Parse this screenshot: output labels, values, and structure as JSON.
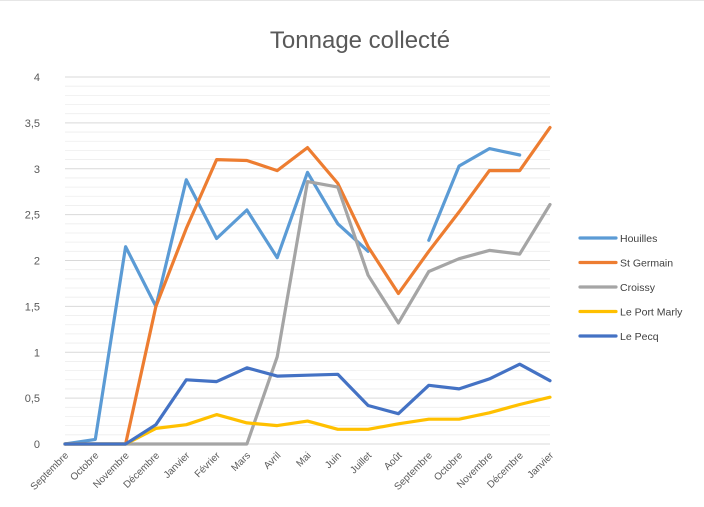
{
  "chart_data": {
    "type": "line",
    "title": "Tonnage collecté",
    "xlabel": "",
    "ylabel": "",
    "ylim": [
      0,
      4
    ],
    "y_ticks": [
      "0",
      "0,5",
      "1",
      "1,5",
      "2",
      "2,5",
      "3",
      "3,5",
      "4"
    ],
    "categories": [
      "Septembre",
      "Octobre",
      "Novembre",
      "Décembre",
      "Janvier",
      "Février",
      "Mars",
      "Avril",
      "Mai",
      "Juin",
      "Juillet",
      "Août",
      "Septembre",
      "Octobre",
      "Novembre",
      "Décembre",
      "Janvier"
    ],
    "grid": true,
    "legend_position": "right",
    "series": [
      {
        "name": "Houilles",
        "color": "#5b9bd5",
        "values": [
          0,
          0.05,
          2.15,
          1.5,
          2.88,
          2.24,
          2.55,
          2.03,
          2.96,
          2.4,
          2.1,
          null,
          2.22,
          3.03,
          3.22,
          3.15,
          null
        ]
      },
      {
        "name": "St Germain",
        "color": "#ed7d31",
        "values": [
          0,
          0,
          0,
          1.5,
          2.35,
          3.1,
          3.09,
          2.98,
          3.23,
          2.84,
          2.15,
          1.64,
          2.1,
          2.53,
          2.98,
          2.98,
          3.45
        ]
      },
      {
        "name": "Croissy",
        "color": "#a5a5a5",
        "values": [
          0,
          0,
          0,
          0,
          0,
          0,
          0,
          0.95,
          2.86,
          2.8,
          1.84,
          1.32,
          1.88,
          2.02,
          2.11,
          2.07,
          2.61
        ]
      },
      {
        "name": "Le Port Marly",
        "color": "#ffc000",
        "values": [
          0,
          0,
          0,
          0.17,
          0.21,
          0.32,
          0.23,
          0.2,
          0.25,
          0.16,
          0.16,
          0.22,
          0.27,
          0.27,
          0.34,
          0.43,
          0.51
        ]
      },
      {
        "name": "Le Pecq",
        "color": "#4472c4",
        "values": [
          0,
          0,
          0,
          0.21,
          0.7,
          0.68,
          0.83,
          0.74,
          0.75,
          0.76,
          0.42,
          0.33,
          0.64,
          0.6,
          0.71,
          0.87,
          0.69
        ]
      }
    ]
  }
}
